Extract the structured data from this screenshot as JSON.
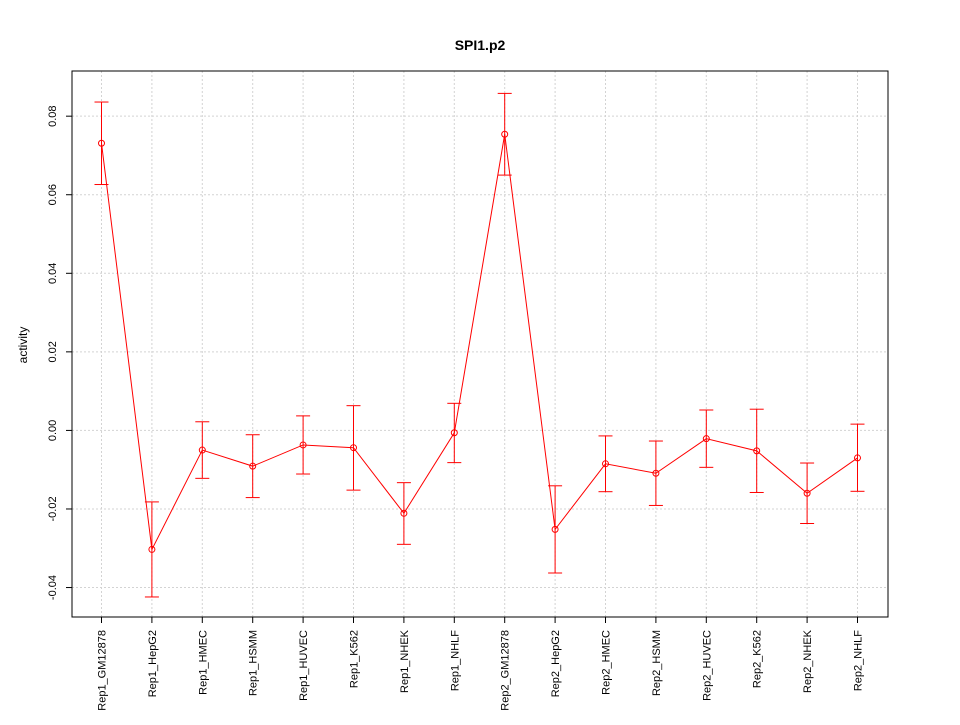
{
  "chart_data": {
    "type": "line",
    "title": "SPI1.p2",
    "xlabel": "",
    "ylabel": "activity",
    "categories": [
      "Rep1_GM12878",
      "Rep1_HepG2",
      "Rep1_HMEC",
      "Rep1_HSMM",
      "Rep1_HUVEC",
      "Rep1_K562",
      "Rep1_NHEK",
      "Rep1_NHLF",
      "Rep2_GM12878",
      "Rep2_HepG2",
      "Rep2_HMEC",
      "Rep2_HSMM",
      "Rep2_HUVEC",
      "Rep2_K562",
      "Rep2_NHEK",
      "Rep2_NHLF"
    ],
    "series": [
      {
        "values": [
          0.0731,
          -0.0303,
          -0.005,
          -0.0091,
          -0.0037,
          -0.0044,
          -0.0211,
          -0.0006,
          0.0754,
          -0.0252,
          -0.0085,
          -0.0109,
          -0.0021,
          -0.0052,
          -0.016,
          -0.007
        ],
        "lower": [
          0.0626,
          -0.0424,
          -0.0122,
          -0.0171,
          -0.0111,
          -0.0152,
          -0.029,
          -0.0082,
          0.065,
          -0.0363,
          -0.0156,
          -0.0191,
          -0.0094,
          -0.0158,
          -0.0237,
          -0.0155
        ],
        "upper": [
          0.0836,
          -0.0182,
          0.0022,
          -0.0011,
          0.0037,
          0.0063,
          -0.0133,
          0.0069,
          0.0858,
          -0.0141,
          -0.0014,
          -0.0027,
          0.0052,
          0.0054,
          -0.0083,
          0.0016
        ],
        "color": "#ff0000"
      }
    ],
    "ylim": [
      -0.0475,
      0.0915
    ],
    "yticks": [
      -0.04,
      -0.02,
      0.0,
      0.02,
      0.04,
      0.06,
      0.08
    ],
    "ytick_labels": [
      "-0.04",
      "-0.02",
      "0.00",
      "0.02",
      "0.04",
      "0.06",
      "0.08"
    ],
    "grid": true,
    "grid_color": "#d3d3d3"
  }
}
